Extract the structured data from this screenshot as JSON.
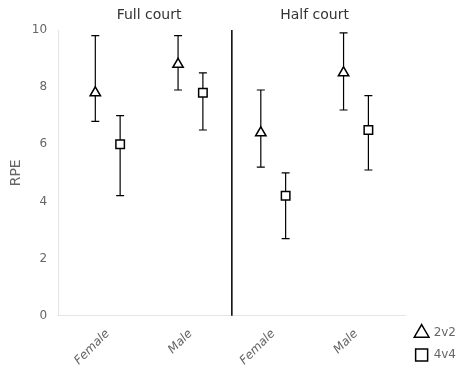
{
  "chart_data": {
    "type": "scatter",
    "annotations": [
      "Full court",
      "Half court"
    ],
    "ylabel": "RPE",
    "categories": [
      "Female",
      "Male",
      "Female",
      "Male"
    ],
    "series": [
      {
        "name": "2v2",
        "color": "#000000",
        "marker": "triangle",
        "values": [
          7.8,
          8.8,
          6.4,
          8.5
        ],
        "err_upper": [
          2.0,
          1.0,
          1.5,
          1.4
        ],
        "err_lower": [
          1.0,
          0.9,
          1.2,
          1.3
        ]
      },
      {
        "name": "4v4",
        "color": "#000000",
        "marker": "square",
        "values": [
          6.0,
          7.8,
          4.2,
          6.5
        ],
        "err_upper": [
          1.0,
          0.7,
          0.8,
          1.2
        ],
        "err_lower": [
          1.8,
          1.3,
          1.5,
          1.4
        ]
      }
    ],
    "ylim": [
      0,
      10
    ],
    "yticks": [
      0,
      2,
      4,
      6,
      8,
      10
    ],
    "grid": false,
    "legend": "lower right"
  }
}
